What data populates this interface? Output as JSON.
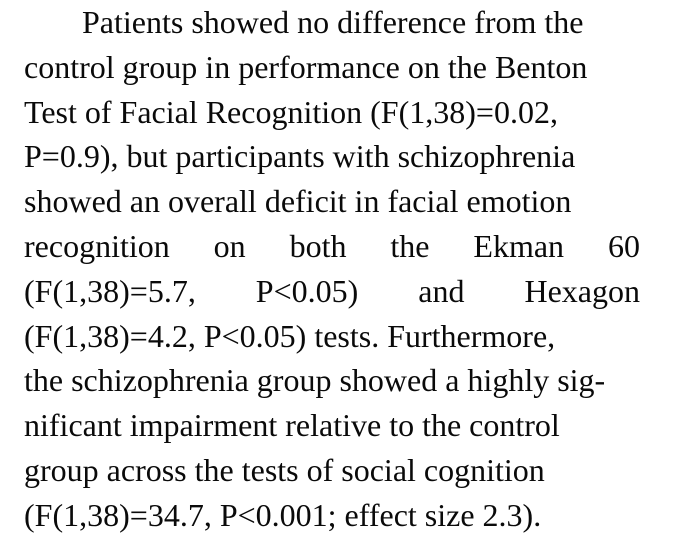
{
  "paragraph": {
    "line1": "Patients showed no difference from the",
    "line2": "control group in performance on the Benton",
    "line3": "Test of Facial Recognition (F(1,38)=0.02,",
    "line4": "P=0.9), but participants with schizophrenia",
    "line5": "showed an overall deficit in facial emotion",
    "line6_words": [
      "recognition",
      "on",
      "both",
      "the",
      "Ekman",
      "60"
    ],
    "line7_words": [
      "(F(1,38)=5.7,",
      "P<0.05)",
      "and",
      "Hexagon"
    ],
    "line8": "(F(1,38)=4.2, P<0.05) tests. Furthermore,",
    "line9": "the schizophrenia group showed a highly sig-",
    "line10": "nificant impairment relative to the control",
    "line11": "group across the tests of social cognition",
    "line12": "(F(1,38)=34.7, P<0.001; effect size 2.3)."
  }
}
